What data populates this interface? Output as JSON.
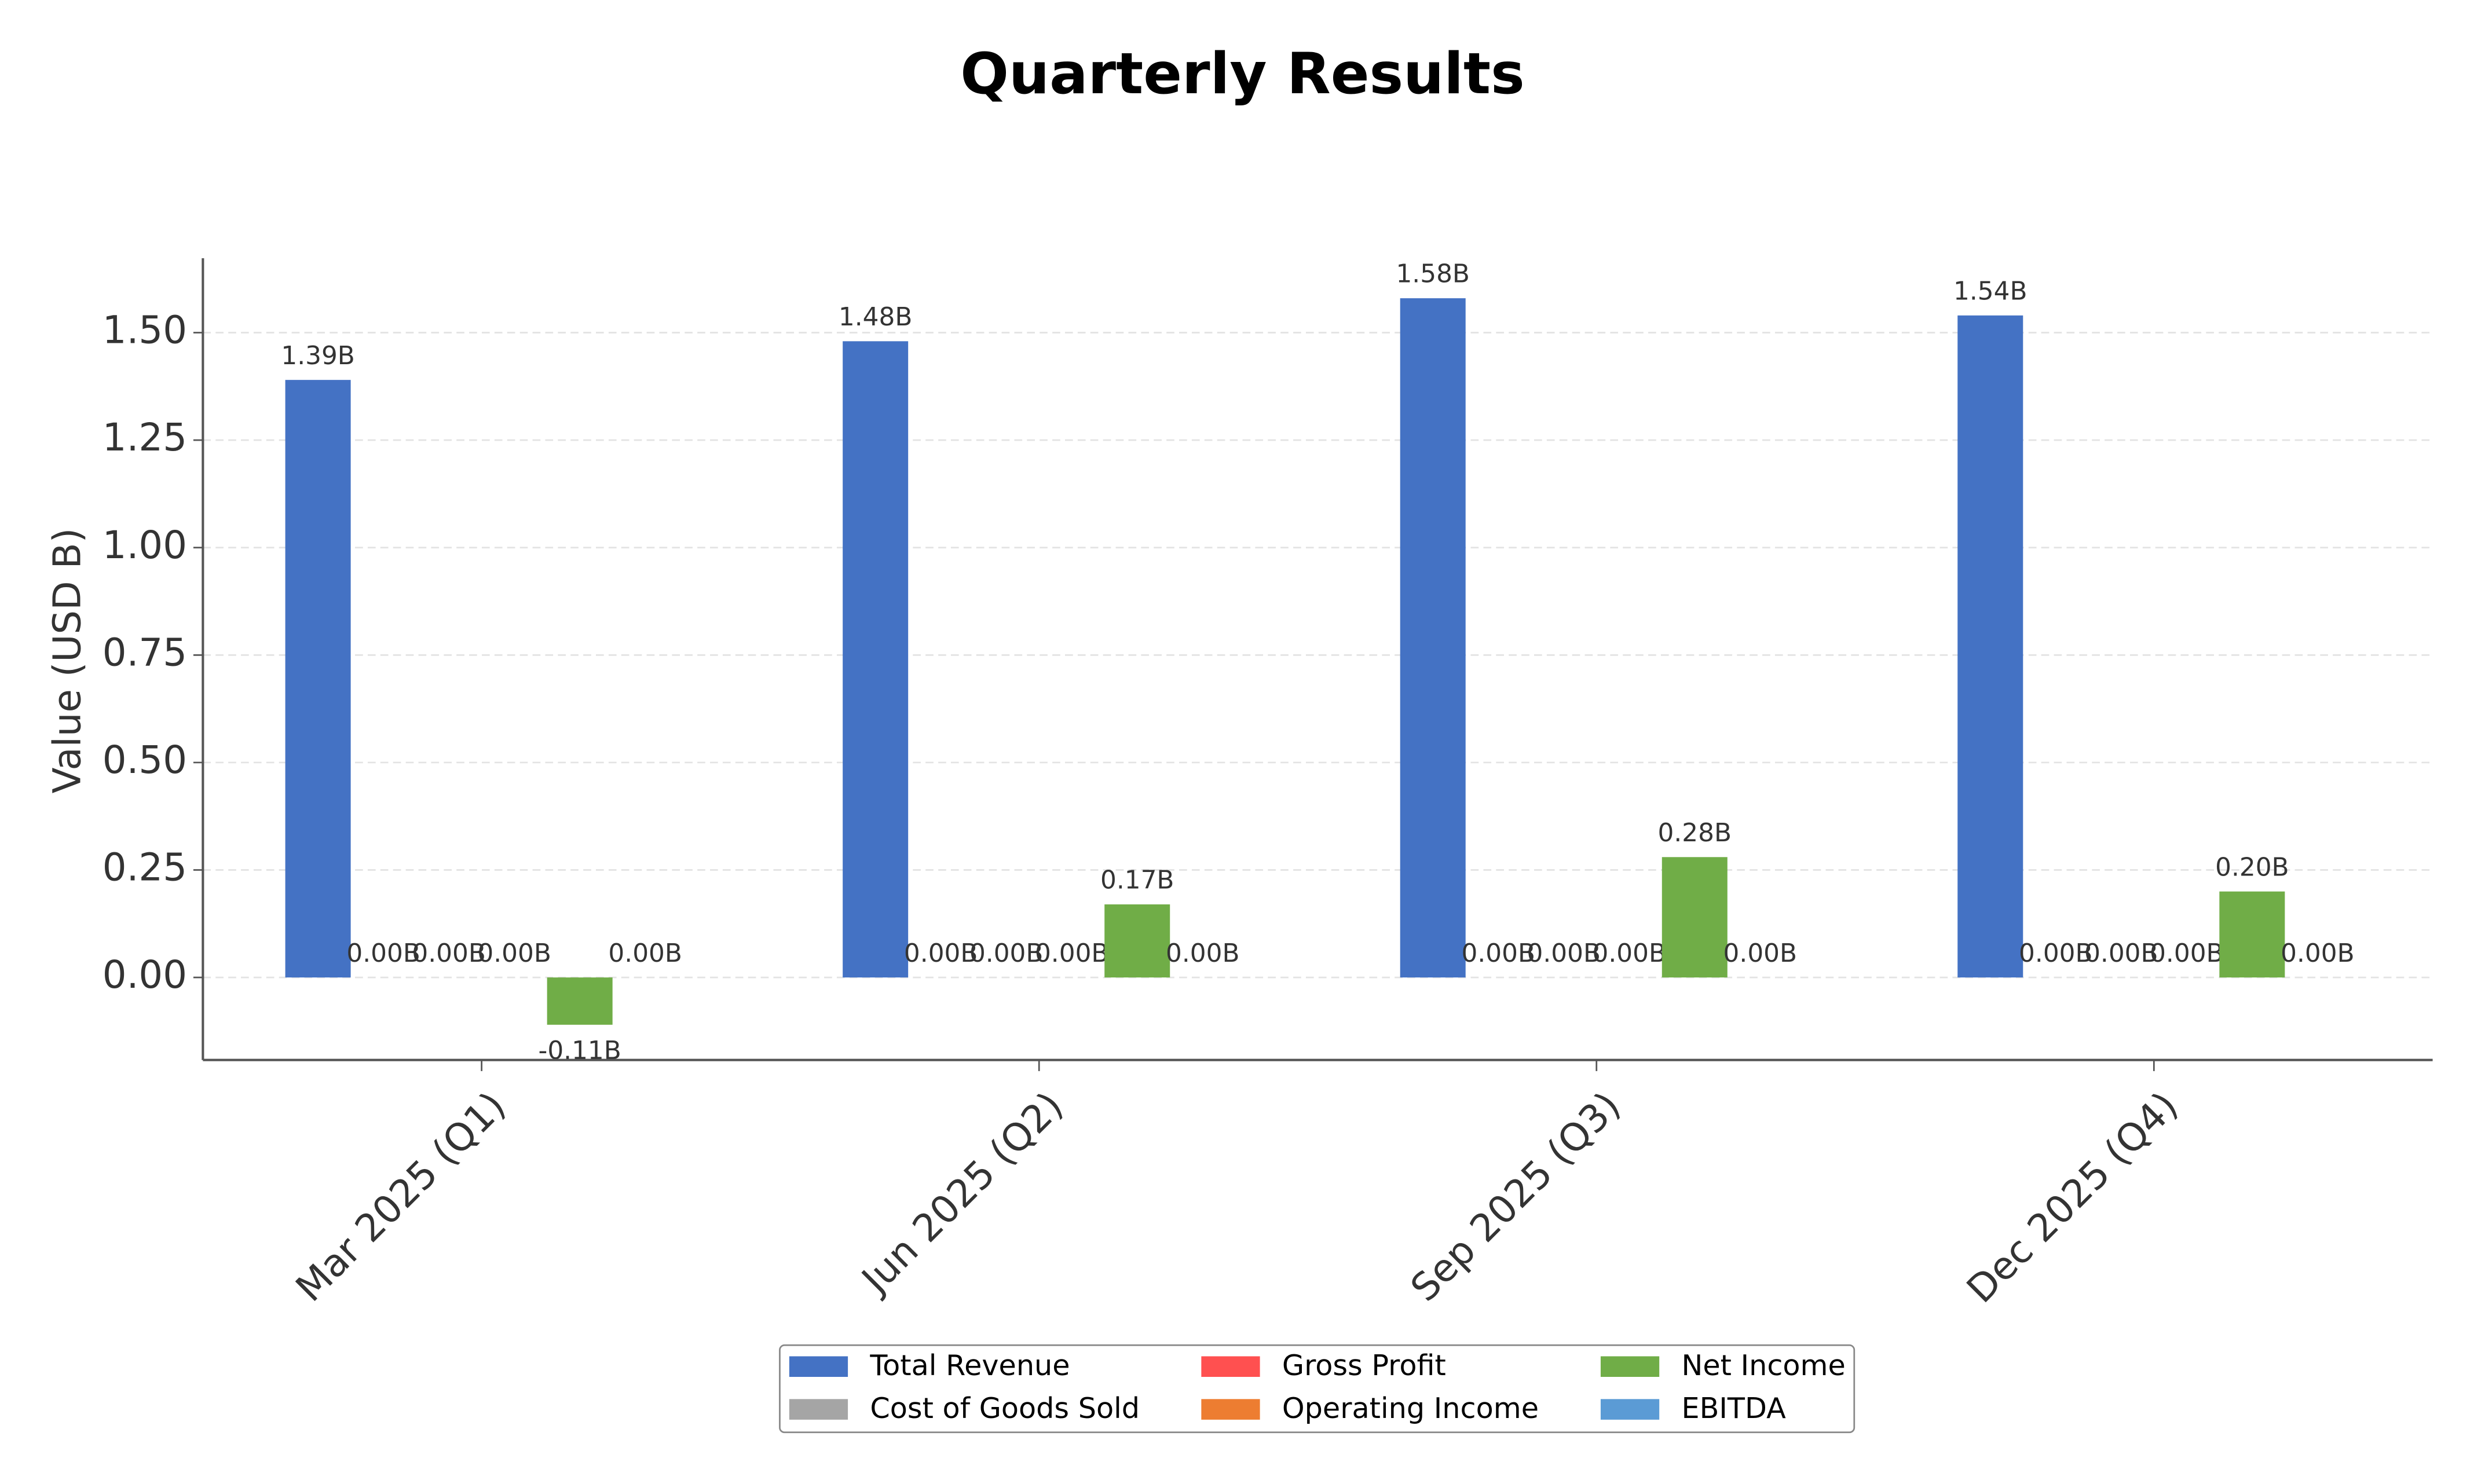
{
  "chart_data": {
    "type": "bar",
    "title": "Quarterly Results",
    "y_label": "Value (USD B)",
    "categories": [
      "Mar 2025 (Q1)",
      "Jun 2025 (Q2)",
      "Sep 2025 (Q3)",
      "Dec 2025 (Q4)"
    ],
    "series": [
      {
        "name": "Total Revenue",
        "color": "#4472c4",
        "values": [
          1.39,
          1.48,
          1.58,
          1.54
        ],
        "value_labels": [
          "1.39B",
          "1.48B",
          "1.58B",
          "1.54B"
        ]
      },
      {
        "name": "Cost of Goods Sold",
        "color": "#a5a5a5",
        "values": [
          0,
          0,
          0,
          0
        ],
        "value_labels": [
          "0.00B",
          "0.00B",
          "0.00B",
          "0.00B"
        ]
      },
      {
        "name": "Gross Profit",
        "color": "#ff5050",
        "values": [
          0,
          0,
          0,
          0
        ],
        "value_labels": [
          "0.00B",
          "0.00B",
          "0.00B",
          "0.00B"
        ]
      },
      {
        "name": "Operating Income",
        "color": "#ed7d31",
        "values": [
          0,
          0,
          0,
          0
        ],
        "value_labels": [
          "0.00B",
          "0.00B",
          "0.00B",
          "0.00B"
        ]
      },
      {
        "name": "Net Income",
        "color": "#70ad47",
        "values": [
          -0.11,
          0.17,
          0.28,
          0.2
        ],
        "value_labels": [
          "-0.11B",
          "0.17B",
          "0.28B",
          "0.20B"
        ]
      },
      {
        "name": "EBITDA",
        "color": "#5b9bd5",
        "values": [
          0,
          0,
          0,
          0
        ],
        "value_labels": [
          "0.00B",
          "0.00B",
          "0.00B",
          "0.00B"
        ]
      }
    ],
    "ylim": [
      -0.192,
      1.673
    ],
    "yticks": [
      {
        "value": 0,
        "label": "0.00"
      },
      {
        "value": 0.25,
        "label": "0.25"
      },
      {
        "value": 0.5,
        "label": "0.50"
      },
      {
        "value": 0.75,
        "label": "0.75"
      },
      {
        "value": 1,
        "label": "1.00"
      },
      {
        "value": 1.25,
        "label": "1.25"
      },
      {
        "value": 1.5,
        "label": "1.50"
      }
    ],
    "grid": true,
    "legend_position": "bottom"
  }
}
